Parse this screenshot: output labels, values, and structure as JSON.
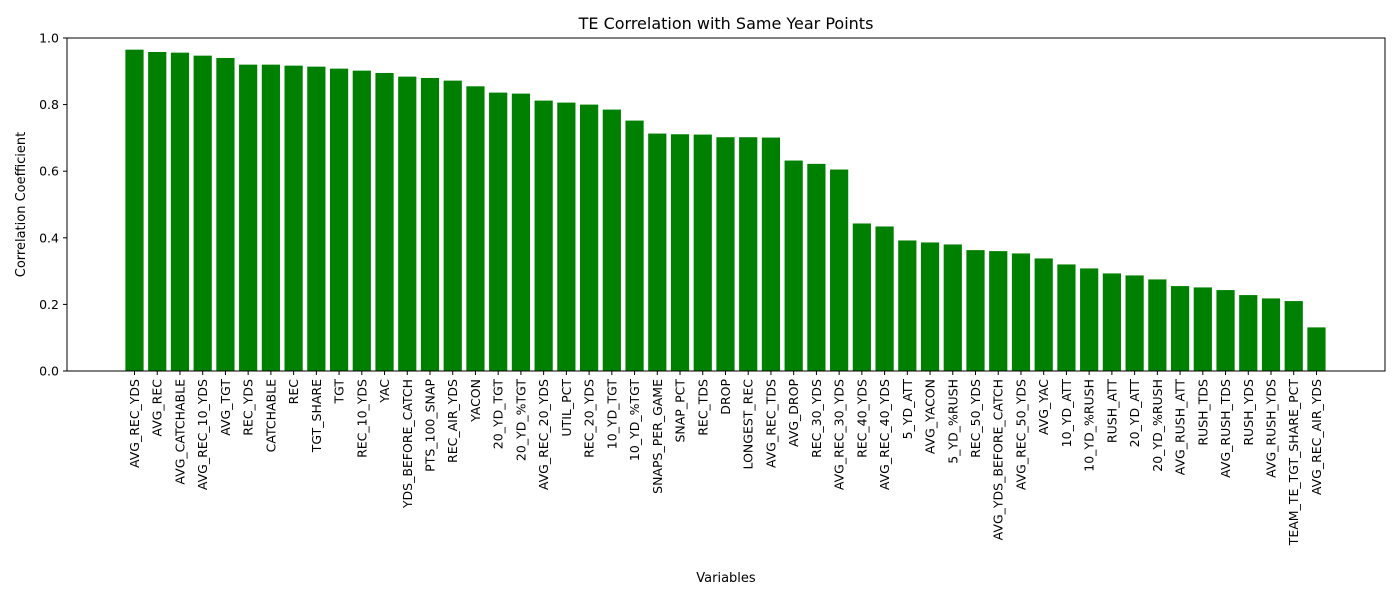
{
  "chart_data": {
    "type": "bar",
    "title": "TE Correlation with Same Year Points",
    "xlabel": "Variables",
    "ylabel": "Correlation Coefficient",
    "ylim": [
      0,
      1.0
    ],
    "yticks": [
      "0.0",
      "0.2",
      "0.4",
      "0.6",
      "0.8",
      "1.0"
    ],
    "ytick_values": [
      0,
      0.2,
      0.4,
      0.6,
      0.8,
      1.0
    ],
    "grid": false,
    "bar_color": "#008000",
    "categories": [
      "AVG_REC_YDS",
      "AVG_REC",
      "AVG_CATCHABLE",
      "AVG_REC_10_YDS",
      "AVG_TGT",
      "REC_YDS",
      "CATCHABLE",
      "REC",
      "TGT_SHARE",
      "TGT",
      "REC_10_YDS",
      "YAC",
      "YDS_BEFORE_CATCH",
      "PTS_100_SNAP",
      "REC_AIR_YDS",
      "YACON",
      "20_YD_TGT",
      "20_YD_%TGT",
      "AVG_REC_20_YDS",
      "UTIL_PCT",
      "REC_20_YDS",
      "10_YD_TGT",
      "10_YD_%TGT",
      "SNAPS_PER_GAME",
      "SNAP_PCT",
      "REC_TDS",
      "DROP",
      "LONGEST_REC",
      "AVG_REC_TDS",
      "AVG_DROP",
      "REC_30_YDS",
      "AVG_REC_30_YDS",
      "REC_40_YDS",
      "AVG_REC_40_YDS",
      "5_YD_ATT",
      "AVG_YACON",
      "5_YD_%RUSH",
      "REC_50_YDS",
      "AVG_YDS_BEFORE_CATCH",
      "AVG_REC_50_YDS",
      "AVG_YAC",
      "10_YD_ATT",
      "10_YD_%RUSH",
      "RUSH_ATT",
      "20_YD_ATT",
      "20_YD_%RUSH",
      "AVG_RUSH_ATT",
      "RUSH_TDS",
      "AVG_RUSH_TDS",
      "RUSH_YDS",
      "AVG_RUSH_YDS",
      "TEAM_TE_TGT_SHARE_PCT",
      "AVG_REC_AIR_YDS"
    ],
    "values": [
      0.965,
      0.958,
      0.956,
      0.947,
      0.94,
      0.92,
      0.92,
      0.917,
      0.914,
      0.908,
      0.902,
      0.895,
      0.884,
      0.88,
      0.872,
      0.855,
      0.836,
      0.833,
      0.812,
      0.806,
      0.8,
      0.785,
      0.752,
      0.713,
      0.711,
      0.71,
      0.702,
      0.702,
      0.701,
      0.632,
      0.622,
      0.605,
      0.443,
      0.434,
      0.392,
      0.386,
      0.38,
      0.363,
      0.36,
      0.353,
      0.338,
      0.32,
      0.308,
      0.293,
      0.287,
      0.275,
      0.255,
      0.251,
      0.243,
      0.228,
      0.218,
      0.21,
      0.131
    ]
  }
}
